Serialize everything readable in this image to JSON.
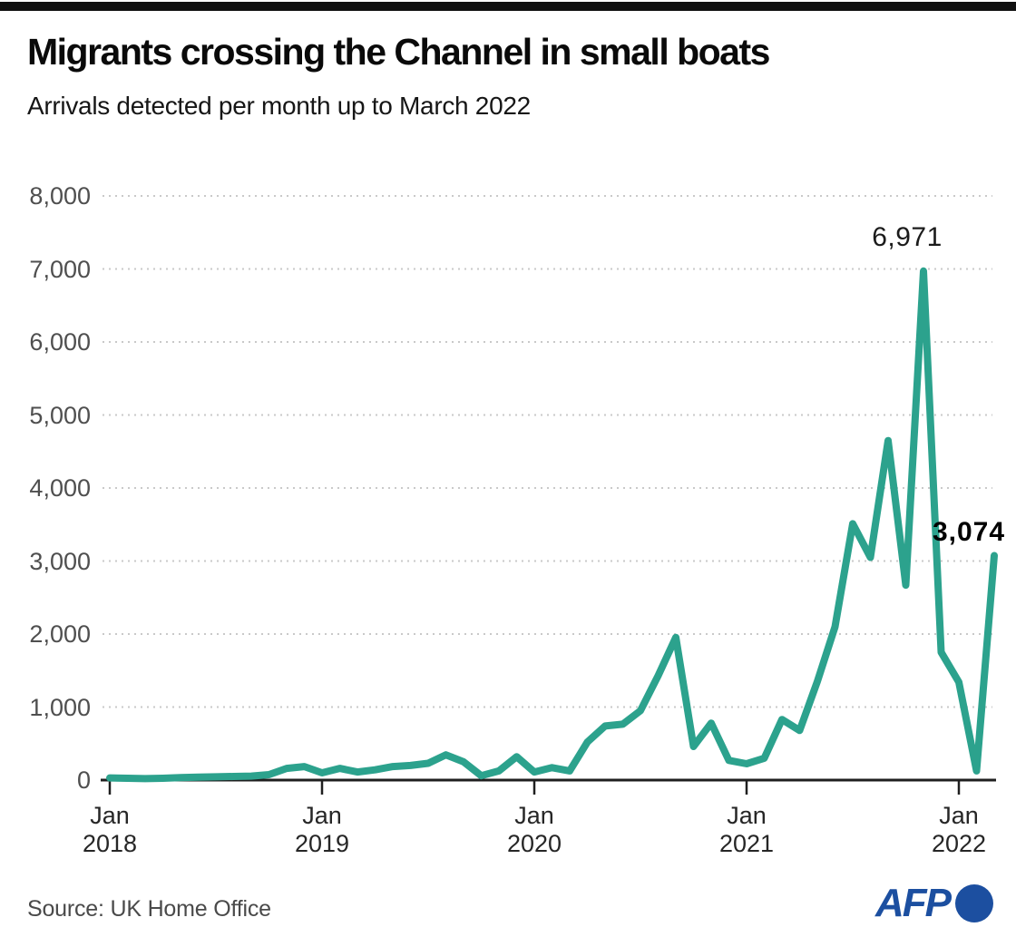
{
  "header": {
    "title": "Migrants crossing the Channel in small boats",
    "subtitle": "Arrivals detected per month up to March 2022"
  },
  "chart_data": {
    "type": "line",
    "title": "Migrants crossing the Channel in small boats",
    "subtitle": "Arrivals detected per month up to March 2022",
    "series_name": "Arrivals detected per month",
    "x": [
      "Jan 2018",
      "Feb 2018",
      "Mar 2018",
      "Apr 2018",
      "May 2018",
      "Jun 2018",
      "Jul 2018",
      "Aug 2018",
      "Sep 2018",
      "Oct 2018",
      "Nov 2018",
      "Dec 2018",
      "Jan 2019",
      "Feb 2019",
      "Mar 2019",
      "Apr 2019",
      "May 2019",
      "Jun 2019",
      "Jul 2019",
      "Aug 2019",
      "Sep 2019",
      "Oct 2019",
      "Nov 2019",
      "Dec 2019",
      "Jan 2020",
      "Feb 2020",
      "Mar 2020",
      "Apr 2020",
      "May 2020",
      "Jun 2020",
      "Jul 2020",
      "Aug 2020",
      "Sep 2020",
      "Oct 2020",
      "Nov 2020",
      "Dec 2020",
      "Jan 2021",
      "Feb 2021",
      "Mar 2021",
      "Apr 2021",
      "May 2021",
      "Jun 2021",
      "Jul 2021",
      "Aug 2021",
      "Sep 2021",
      "Oct 2021",
      "Nov 2021",
      "Dec 2021",
      "Jan 2022",
      "Feb 2022",
      "Mar 2022"
    ],
    "values": [
      30,
      25,
      20,
      25,
      35,
      40,
      45,
      50,
      55,
      75,
      160,
      185,
      100,
      160,
      110,
      140,
      185,
      200,
      230,
      345,
      250,
      60,
      125,
      320,
      110,
      170,
      125,
      520,
      740,
      765,
      950,
      1430,
      1954,
      460,
      780,
      270,
      223,
      300,
      830,
      680,
      1350,
      2100,
      3510,
      3050,
      4650,
      2670,
      6971,
      1750,
      1341,
      125,
      3074
    ],
    "ylim": [
      0,
      8000
    ],
    "ytick_labels": [
      "0",
      "1,000",
      "2,000",
      "3,000",
      "4,000",
      "5,000",
      "6,000",
      "7,000",
      "8,000"
    ],
    "xticks": [
      {
        "month": "Jan",
        "year": "2018"
      },
      {
        "month": "Jan",
        "year": "2019"
      },
      {
        "month": "Jan",
        "year": "2020"
      },
      {
        "month": "Jan",
        "year": "2021"
      },
      {
        "month": "Jan",
        "year": "2022"
      }
    ],
    "grid": "horizontal-dashed",
    "legend": "none",
    "line_color": "#2CA28D",
    "axis_color": "#1f1f1f",
    "grid_color": "#c9c9c9",
    "annotations": [
      {
        "text": "6,971",
        "month": "Nov 2021",
        "emphasis": "regular"
      },
      {
        "text": "3,074",
        "month": "Mar 2022",
        "emphasis": "bold"
      }
    ]
  },
  "footer": {
    "source": "Source: UK Home Office",
    "logo_text": "AFP",
    "logo_color": "#1c4fa0"
  }
}
